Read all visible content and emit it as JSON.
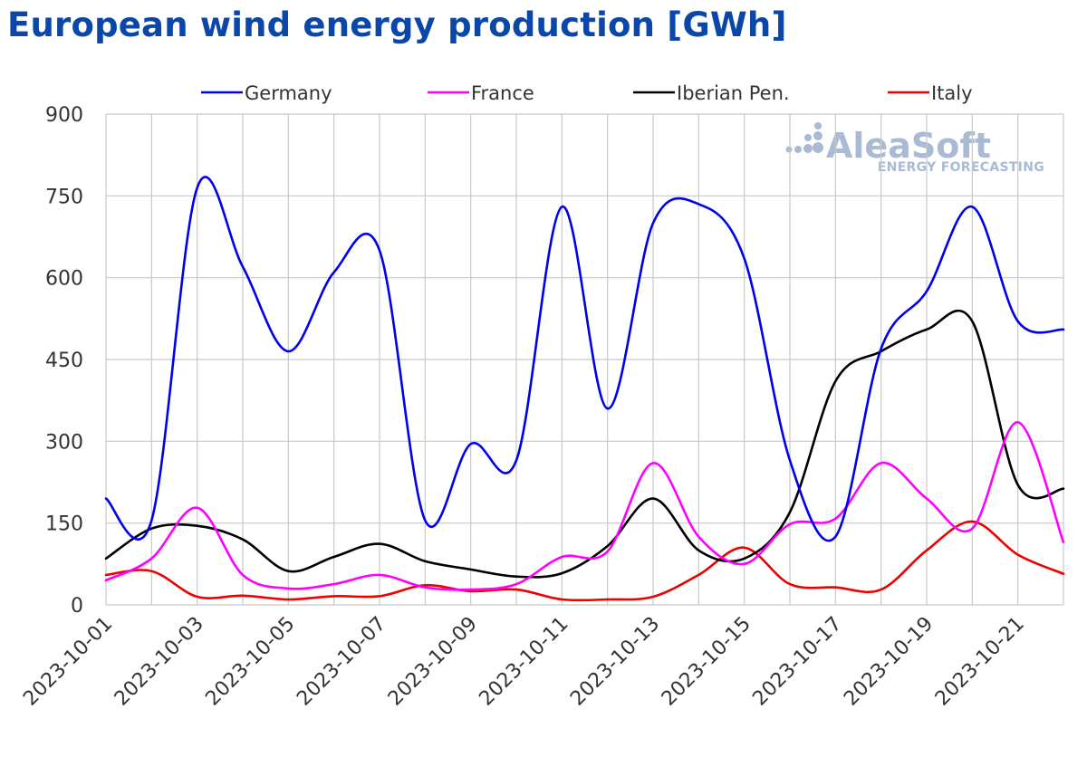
{
  "chart_data": {
    "type": "line",
    "title": "European wind energy production [GWh]",
    "xlabel": "",
    "ylabel": "",
    "ylim": [
      0,
      900
    ],
    "yticks": [
      0,
      150,
      300,
      450,
      600,
      750,
      900
    ],
    "grid": true,
    "legend_position": "top",
    "x": [
      "2023-10-01",
      "2023-10-02",
      "2023-10-03",
      "2023-10-04",
      "2023-10-05",
      "2023-10-06",
      "2023-10-07",
      "2023-10-08",
      "2023-10-09",
      "2023-10-10",
      "2023-10-11",
      "2023-10-12",
      "2023-10-13",
      "2023-10-14",
      "2023-10-15",
      "2023-10-16",
      "2023-10-17",
      "2023-10-18",
      "2023-10-19",
      "2023-10-20",
      "2023-10-21",
      "2023-10-22"
    ],
    "xtick_labels": [
      "2023-10-01",
      "2023-10-03",
      "2023-10-05",
      "2023-10-07",
      "2023-10-09",
      "2023-10-11",
      "2023-10-13",
      "2023-10-15",
      "2023-10-17",
      "2023-10-19",
      "2023-10-21"
    ],
    "series": [
      {
        "name": "Germany",
        "color": "#0000ee",
        "values": [
          195,
          155,
          765,
          620,
          465,
          610,
          650,
          155,
          295,
          265,
          730,
          360,
          700,
          735,
          635,
          265,
          125,
          470,
          575,
          730,
          520,
          505
        ]
      },
      {
        "name": "France",
        "color": "#ff00ff",
        "values": [
          45,
          85,
          178,
          55,
          30,
          38,
          55,
          32,
          28,
          38,
          88,
          98,
          260,
          125,
          75,
          148,
          158,
          260,
          195,
          140,
          335,
          115
        ]
      },
      {
        "name": "Iberian Pen.",
        "color": "#000000",
        "values": [
          85,
          140,
          145,
          120,
          62,
          88,
          112,
          80,
          65,
          52,
          58,
          108,
          195,
          100,
          85,
          170,
          410,
          465,
          505,
          520,
          220,
          213
        ]
      },
      {
        "name": "Italy",
        "color": "#ee0000",
        "values": [
          55,
          62,
          15,
          17,
          10,
          16,
          16,
          36,
          25,
          28,
          10,
          10,
          15,
          55,
          105,
          38,
          32,
          28,
          100,
          153,
          92,
          57
        ]
      }
    ]
  },
  "watermark": {
    "brand": "AleaSoft",
    "tagline": "ENERGY FORECASTING"
  }
}
